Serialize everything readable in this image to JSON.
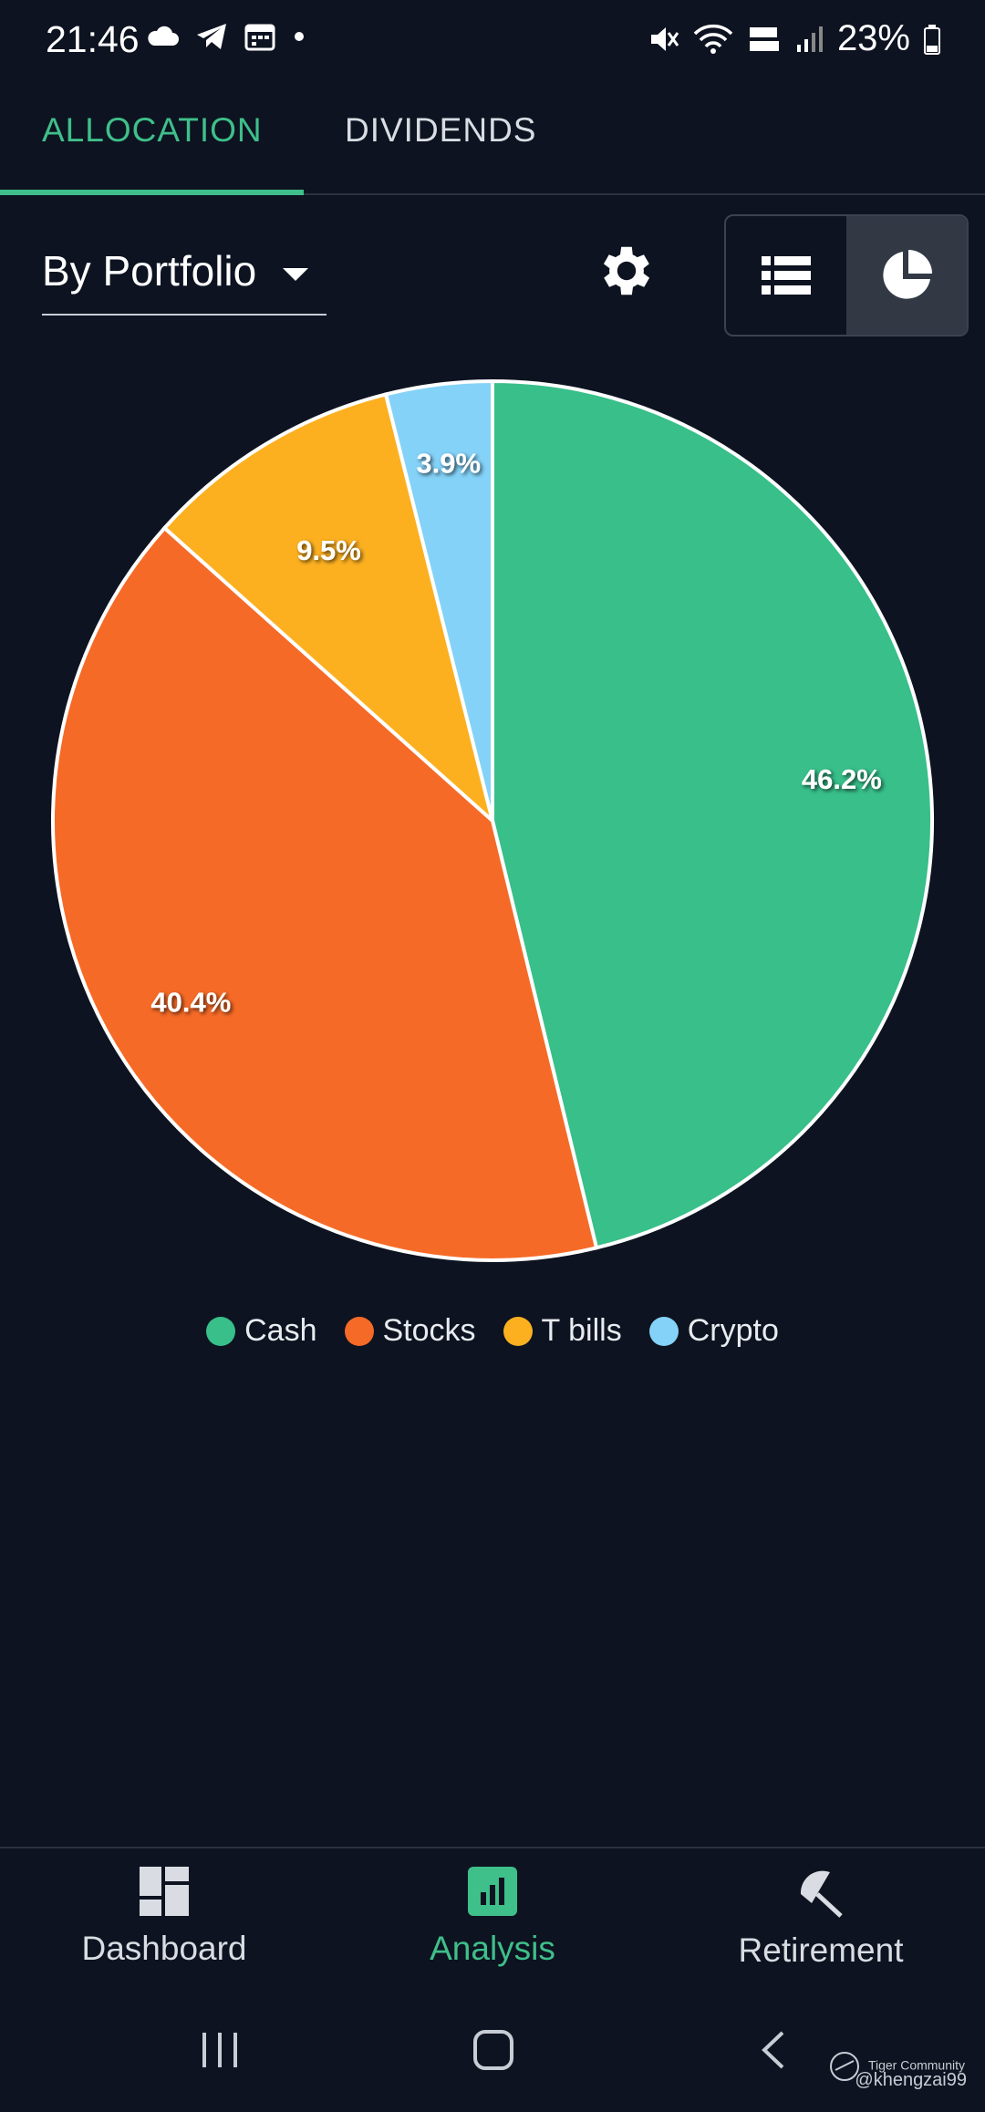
{
  "status_bar": {
    "time": "21:46",
    "battery": "23%"
  },
  "tabs": [
    {
      "label": "ALLOCATION",
      "active": true
    },
    {
      "label": "DIVIDENDS",
      "active": false
    }
  ],
  "toolbar": {
    "portfolio_select_value": "By Portfolio"
  },
  "chart_data": {
    "type": "pie",
    "categories": [
      "Cash",
      "Stocks",
      "T bills",
      "Crypto"
    ],
    "values": [
      46.2,
      40.4,
      9.5,
      3.9
    ],
    "labels": [
      "46.2%",
      "40.4%",
      "9.5%",
      "3.9%"
    ],
    "colors": [
      "#38bf8a",
      "#f66a27",
      "#fcb020",
      "#84d2f8"
    ],
    "legend": "bottom",
    "title": ""
  },
  "bottom_nav": [
    {
      "label": "Dashboard",
      "icon": "dashboard-icon"
    },
    {
      "label": "Analysis",
      "icon": "analysis-icon",
      "active": true
    },
    {
      "label": "Retirement",
      "icon": "retirement-umbrella-icon"
    }
  ],
  "watermark": {
    "brand": "Tiger Community",
    "handle": "@khengzai99"
  },
  "colors": {
    "background": "#0d1320",
    "accent": "#3fbf8a"
  }
}
